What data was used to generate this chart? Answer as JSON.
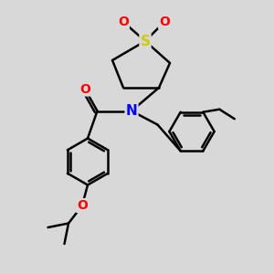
{
  "bg_color": "#d8d8d8",
  "bond_color": "#000000",
  "atom_colors": {
    "N": "#0000ff",
    "O": "#ff0000",
    "S": "#cccc00"
  },
  "bond_width": 1.8,
  "figsize": [
    3.0,
    3.0
  ],
  "dpi": 100
}
